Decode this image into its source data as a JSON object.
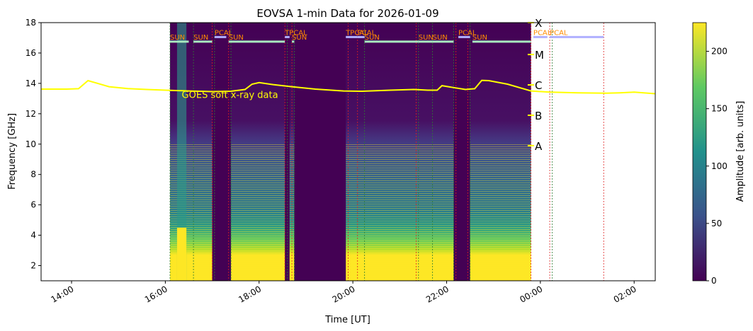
{
  "chart_data": {
    "type": "heatmap",
    "title": "EOVSA 1-min Data for 2026-01-09",
    "xlabel": "Time [UT]",
    "ylabel": "Frequency [GHz]",
    "colorbar_label": "Amplitude [arb. units]",
    "colormap": "viridis",
    "colormap_stops": [
      "#440154",
      "#3b528b",
      "#21918c",
      "#5ec962",
      "#fde725"
    ],
    "x_range_hours": [
      13.35,
      26.45
    ],
    "ylim": [
      1,
      18
    ],
    "clim": [
      0,
      225
    ],
    "x_ticks": [
      {
        "hour": 14,
        "label": "14:00"
      },
      {
        "hour": 16,
        "label": "16:00"
      },
      {
        "hour": 18,
        "label": "18:00"
      },
      {
        "hour": 20,
        "label": "20:00"
      },
      {
        "hour": 22,
        "label": "22:00"
      },
      {
        "hour": 24,
        "label": "00:00"
      },
      {
        "hour": 26,
        "label": "02:00"
      }
    ],
    "y_ticks": [
      2,
      4,
      6,
      8,
      10,
      12,
      14,
      16,
      18
    ],
    "colorbar_ticks": [
      0,
      50,
      100,
      150,
      200
    ],
    "data_extent_hours": [
      16.1,
      23.8
    ],
    "gaps_hours": [
      [
        17.0,
        17.4
      ],
      [
        18.55,
        18.65
      ],
      [
        18.75,
        19.85
      ],
      [
        22.15,
        22.5
      ]
    ],
    "goes_label": "GOES soft x-ray data",
    "goes_color": "#ffff00",
    "goes_curve": [
      [
        13.35,
        13.62
      ],
      [
        13.9,
        13.62
      ],
      [
        14.15,
        13.65
      ],
      [
        14.35,
        14.18
      ],
      [
        14.5,
        14.05
      ],
      [
        14.8,
        13.78
      ],
      [
        15.2,
        13.66
      ],
      [
        15.6,
        13.6
      ],
      [
        16.0,
        13.55
      ],
      [
        16.5,
        13.5
      ],
      [
        17.0,
        13.46
      ],
      [
        17.4,
        13.48
      ],
      [
        17.7,
        13.6
      ],
      [
        17.85,
        13.95
      ],
      [
        18.0,
        14.05
      ],
      [
        18.3,
        13.92
      ],
      [
        18.7,
        13.78
      ],
      [
        19.2,
        13.62
      ],
      [
        19.8,
        13.5
      ],
      [
        20.2,
        13.48
      ],
      [
        20.8,
        13.55
      ],
      [
        21.3,
        13.6
      ],
      [
        21.6,
        13.55
      ],
      [
        21.8,
        13.55
      ],
      [
        21.9,
        13.85
      ],
      [
        22.1,
        13.75
      ],
      [
        22.4,
        13.6
      ],
      [
        22.6,
        13.65
      ],
      [
        22.75,
        14.2
      ],
      [
        22.9,
        14.18
      ],
      [
        23.3,
        13.95
      ],
      [
        23.8,
        13.5
      ],
      [
        24.2,
        13.42
      ],
      [
        24.8,
        13.38
      ],
      [
        25.4,
        13.35
      ],
      [
        25.7,
        13.38
      ],
      [
        26.0,
        13.42
      ],
      [
        26.45,
        13.32
      ]
    ],
    "goes_classes": [
      {
        "label": "X",
        "freq": 18.0
      },
      {
        "label": "M",
        "freq": 15.9
      },
      {
        "label": "C",
        "freq": 13.9
      },
      {
        "label": "B",
        "freq": 11.9
      },
      {
        "label": "A",
        "freq": 9.9
      }
    ],
    "scans": [
      {
        "label": "SUN",
        "start": 16.1,
        "end": 16.5,
        "freq": 16.75,
        "kind": "sun"
      },
      {
        "label": "SUN",
        "start": 16.6,
        "end": 17.0,
        "freq": 16.75,
        "kind": "sun"
      },
      {
        "label": "PCAL",
        "start": 17.05,
        "end": 17.3,
        "freq": 17.05,
        "kind": "cal"
      },
      {
        "label": "SUN",
        "start": 17.35,
        "end": 18.55,
        "freq": 16.75,
        "kind": "sun"
      },
      {
        "label": "TPCAL",
        "start": 18.55,
        "end": 18.65,
        "freq": 17.05,
        "kind": "cal"
      },
      {
        "label": "SUN",
        "start": 18.7,
        "end": 18.75,
        "freq": 16.75,
        "kind": "sun"
      },
      {
        "label": "TPCAL",
        "start": 19.85,
        "end": 20.1,
        "freq": 17.05,
        "kind": "cal"
      },
      {
        "label": "PCAL",
        "start": 20.1,
        "end": 20.25,
        "freq": 17.05,
        "kind": "cal"
      },
      {
        "label": "SUN",
        "start": 20.25,
        "end": 21.4,
        "freq": 16.75,
        "kind": "sun"
      },
      {
        "label": "SUN",
        "start": 21.4,
        "end": 21.7,
        "freq": 16.75,
        "kind": "sun"
      },
      {
        "label": "SUN",
        "start": 21.7,
        "end": 22.15,
        "freq": 16.75,
        "kind": "sun"
      },
      {
        "label": "PCAL",
        "start": 22.25,
        "end": 22.5,
        "freq": 17.05,
        "kind": "cal"
      },
      {
        "label": "SUN",
        "start": 22.55,
        "end": 23.8,
        "freq": 16.75,
        "kind": "sun"
      },
      {
        "label": "PCAL",
        "start": 23.85,
        "end": 24.15,
        "freq": 17.05,
        "kind": "cal"
      },
      {
        "label": "PCAL",
        "start": 24.2,
        "end": 25.35,
        "freq": 17.05,
        "kind": "cal"
      }
    ],
    "scan_colors": {
      "sun": "#a8e8c0",
      "cal": "#b0b0ff",
      "label": "#ff8c00"
    },
    "scan_lines_green": [
      16.1,
      16.6,
      17.05,
      17.4,
      18.6,
      18.75,
      20.25,
      21.4,
      21.7,
      22.15,
      22.5,
      24.25
    ],
    "scan_lines_red": [
      17.0,
      17.35,
      18.55,
      18.7,
      19.9,
      20.1,
      21.35,
      22.2,
      22.45,
      23.8,
      24.2,
      25.35
    ]
  }
}
